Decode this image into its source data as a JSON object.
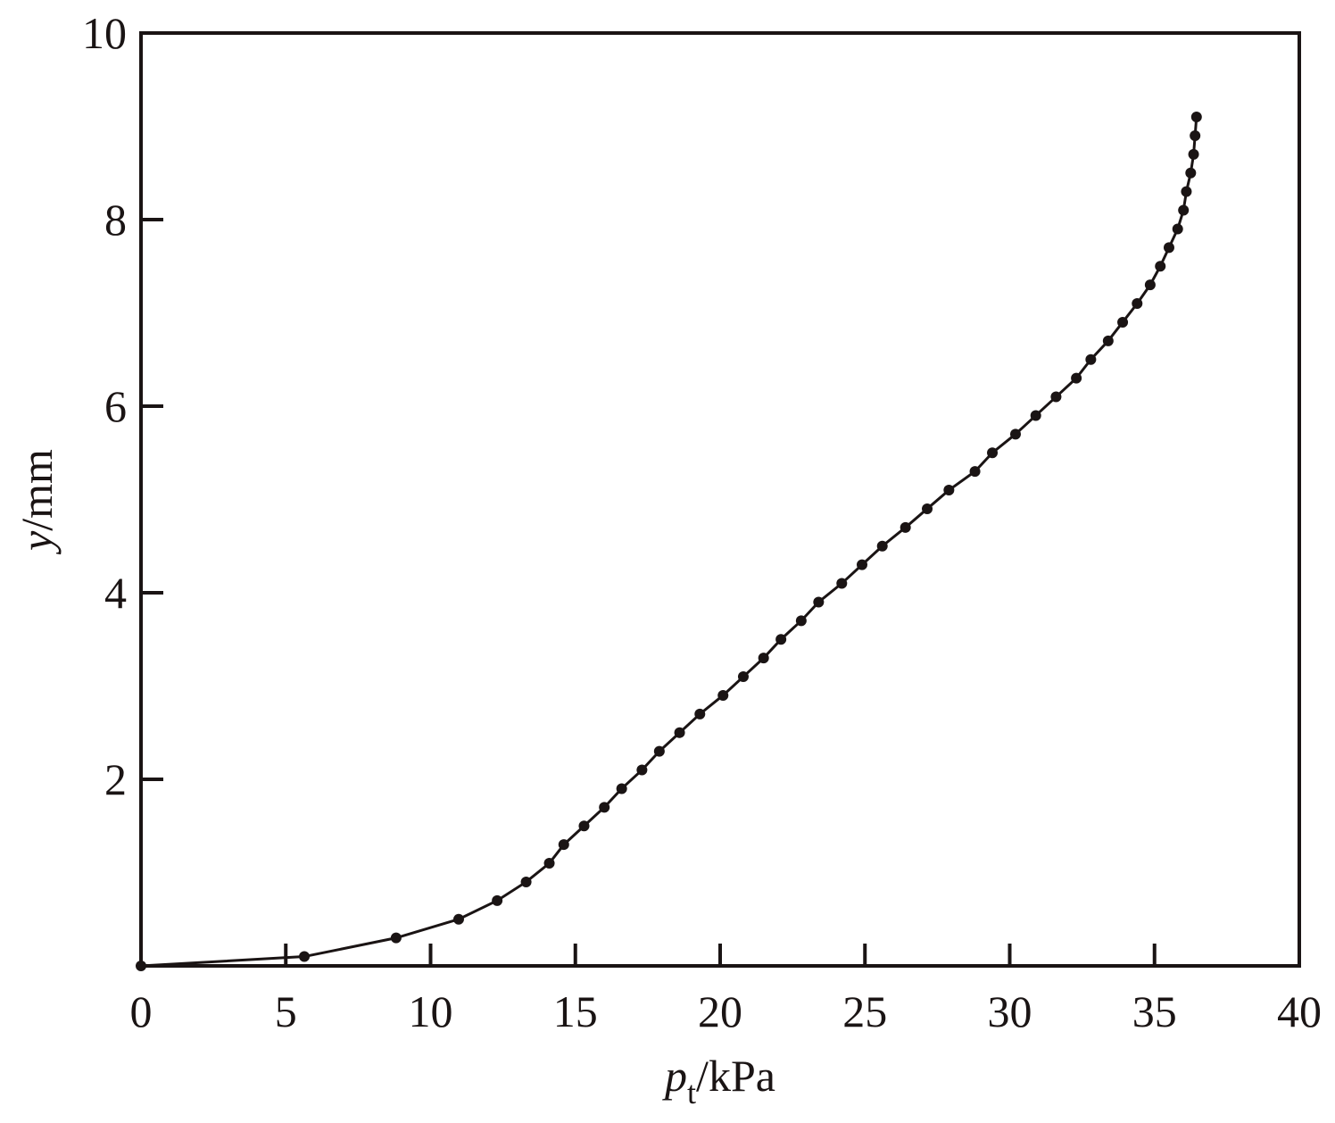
{
  "chart_data": {
    "type": "line",
    "x_label": {
      "symbol": "p",
      "subscript": "t",
      "unit": "/kPa"
    },
    "y_label": {
      "symbol": "y",
      "unit": "/mm"
    },
    "x": [
      0,
      5.64,
      8.81,
      10.97,
      12.3,
      13.3,
      14.1,
      14.6,
      15.3,
      16.0,
      16.6,
      17.3,
      17.9,
      18.6,
      19.3,
      20.1,
      20.8,
      21.5,
      22.1,
      22.8,
      23.4,
      24.2,
      24.9,
      25.6,
      26.4,
      27.15,
      27.9,
      28.8,
      29.4,
      30.2,
      30.9,
      31.6,
      32.3,
      32.8,
      33.4,
      33.9,
      34.4,
      34.85,
      35.2,
      35.5,
      35.8,
      36.0,
      36.1,
      36.25,
      36.35,
      36.4,
      36.45
    ],
    "series": [
      {
        "color": "#1a1414",
        "values": [
          0,
          0.1,
          0.3,
          0.5,
          0.7,
          0.9,
          1.1,
          1.3,
          1.5,
          1.7,
          1.9,
          2.1,
          2.3,
          2.5,
          2.7,
          2.9,
          3.1,
          3.3,
          3.5,
          3.7,
          3.9,
          4.1,
          4.3,
          4.5,
          4.7,
          4.9,
          5.1,
          5.3,
          5.5,
          5.7,
          5.9,
          6.1,
          6.3,
          6.5,
          6.7,
          6.9,
          7.1,
          7.3,
          7.5,
          7.7,
          7.9,
          8.1,
          8.3,
          8.5,
          8.7,
          8.9,
          9.1
        ]
      }
    ],
    "xlim": [
      0,
      40
    ],
    "xticks": [
      0,
      5,
      10,
      15,
      20,
      25,
      30,
      35,
      40
    ],
    "ylim": [
      0,
      10
    ],
    "yticks": [
      2,
      4,
      6,
      8,
      10
    ]
  }
}
